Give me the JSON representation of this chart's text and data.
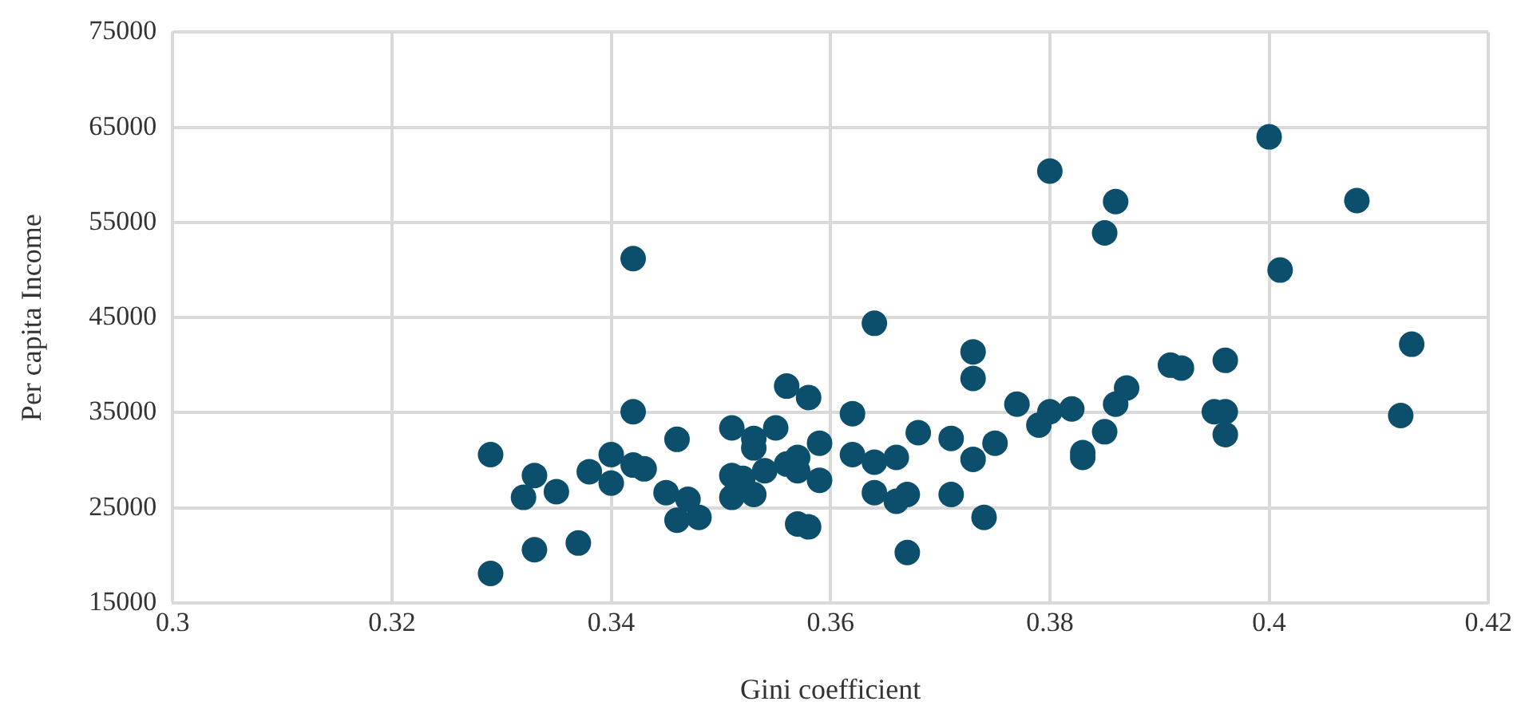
{
  "chart_data": {
    "type": "scatter",
    "xlabel": "Gini coefficient",
    "ylabel": "Per capita Income",
    "xlim": [
      0.3,
      0.42
    ],
    "xticks": [
      0.3,
      0.32,
      0.34,
      0.36,
      0.38,
      0.4,
      0.42
    ],
    "ylim": [
      15000,
      75000
    ],
    "yticks": [
      15000,
      25000,
      35000,
      45000,
      55000,
      65000,
      75000
    ],
    "grid": true,
    "legend": false,
    "marker": "circle",
    "series": [
      {
        "color": "#0b4f6c",
        "x": [
          0.329,
          0.329,
          0.332,
          0.333,
          0.333,
          0.335,
          0.337,
          0.338,
          0.34,
          0.34,
          0.342,
          0.342,
          0.342,
          0.343,
          0.345,
          0.346,
          0.346,
          0.347,
          0.348,
          0.351,
          0.351,
          0.351,
          0.352,
          0.353,
          0.353,
          0.353,
          0.354,
          0.355,
          0.356,
          0.356,
          0.357,
          0.357,
          0.357,
          0.358,
          0.358,
          0.359,
          0.359,
          0.362,
          0.362,
          0.364,
          0.364,
          0.364,
          0.366,
          0.366,
          0.367,
          0.367,
          0.368,
          0.371,
          0.371,
          0.373,
          0.373,
          0.373,
          0.374,
          0.375,
          0.377,
          0.379,
          0.38,
          0.38,
          0.382,
          0.383,
          0.383,
          0.385,
          0.386,
          0.385,
          0.386,
          0.387,
          0.391,
          0.392,
          0.395,
          0.396,
          0.396,
          0.396,
          0.4,
          0.401,
          0.408,
          0.413,
          0.412
        ],
        "values": [
          30600,
          18100,
          26100,
          28400,
          20600,
          26700,
          21300,
          28800,
          30600,
          27600,
          51200,
          35100,
          29500,
          29100,
          26600,
          32200,
          23700,
          25900,
          24000,
          33400,
          28400,
          26100,
          28100,
          32300,
          31300,
          26400,
          28900,
          33400,
          37800,
          29600,
          30300,
          28900,
          23300,
          36600,
          23000,
          31800,
          27900,
          34900,
          30600,
          44400,
          29800,
          26600,
          30300,
          25700,
          26400,
          20300,
          32900,
          32300,
          26400,
          41400,
          38600,
          30100,
          24000,
          31800,
          35900,
          33700,
          60400,
          35100,
          35400,
          30800,
          30300,
          53900,
          57200,
          33000,
          35900,
          37600,
          40000,
          39700,
          35100,
          35100,
          40500,
          32700,
          64000,
          50000,
          57300,
          42200,
          34700
        ]
      }
    ]
  }
}
